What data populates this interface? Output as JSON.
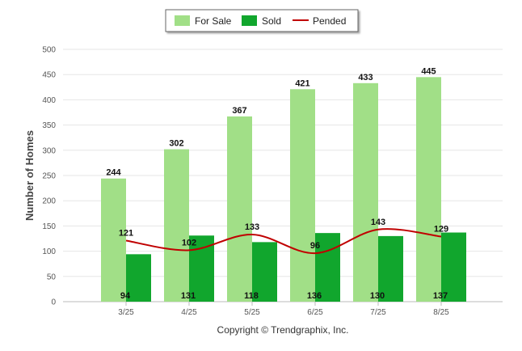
{
  "chart_data": {
    "type": "bar",
    "categories": [
      "3/25",
      "4/25",
      "5/25",
      "6/25",
      "7/25",
      "8/25"
    ],
    "series": [
      {
        "name": "For Sale",
        "type": "bar",
        "color": "#a1df87",
        "values": [
          244,
          302,
          367,
          421,
          433,
          445
        ]
      },
      {
        "name": "Sold",
        "type": "bar",
        "color": "#11a62d",
        "values": [
          94,
          131,
          118,
          136,
          130,
          137
        ]
      },
      {
        "name": "Pended",
        "type": "line",
        "color": "#c00000",
        "values": [
          121,
          102,
          133,
          96,
          143,
          129
        ]
      }
    ],
    "ylabel": "Number of Homes",
    "ylim": [
      0,
      500
    ],
    "yticks": [
      0,
      50,
      100,
      150,
      200,
      250,
      300,
      350,
      400,
      450,
      500
    ],
    "grid": true,
    "legend_position": "top-center"
  },
  "footer": {
    "copyright": "Copyright © Trendgraphix, Inc."
  }
}
